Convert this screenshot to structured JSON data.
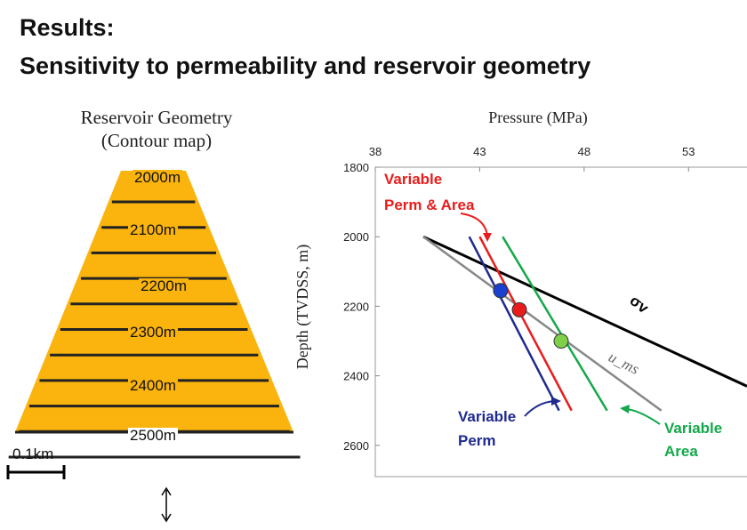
{
  "slide": {
    "title_line1": "Results:",
    "title_line2": "Sensitivity to permeability and reservoir geometry"
  },
  "geometry": {
    "heading_line1": "Reservoir Geometry",
    "heading_line2": "(Contour map)",
    "fill_color": "#FBB40E",
    "contours": [
      "2000m",
      "2100m",
      "2200m",
      "2300m",
      "2400m",
      "2500m"
    ],
    "scale_label": "0.1km"
  },
  "chart_data": {
    "type": "line",
    "xlabel": "Pressure (MPa)",
    "ylabel": "Depth (TVDSS, m)",
    "x_ticks": [
      38,
      43,
      48,
      53
    ],
    "y_ticks": [
      1800,
      2000,
      2200,
      2400,
      2600
    ],
    "xlim": [
      38,
      55.8
    ],
    "ylim": [
      1800,
      2690
    ],
    "y_inverted": true,
    "x_axis_position": "top",
    "grid": false,
    "series": [
      {
        "name": "σv",
        "color": "#000000",
        "x": [
          40.3,
          55.8
        ],
        "y": [
          2000,
          2430
        ]
      },
      {
        "name": "u_ms",
        "color": "#888888",
        "x": [
          40.3,
          51.7
        ],
        "y": [
          2000,
          2500
        ]
      },
      {
        "name": "Variable Perm",
        "color": "#1F2A8F",
        "x": [
          42.5,
          46.8
        ],
        "y": [
          2000,
          2500
        ]
      },
      {
        "name": "Variable Perm & Area",
        "color": "#E81C1C",
        "x": [
          43.0,
          47.4
        ],
        "y": [
          2000,
          2500
        ]
      },
      {
        "name": "Variable Area",
        "color": "#14A84A",
        "x": [
          44.1,
          49.1
        ],
        "y": [
          2000,
          2500
        ]
      }
    ],
    "points": [
      {
        "series": "Variable Perm",
        "x": 44.0,
        "y": 2155,
        "color": "#1B3FCF"
      },
      {
        "series": "Variable Perm & Area",
        "x": 44.9,
        "y": 2210,
        "color": "#E81C1C"
      },
      {
        "series": "Variable Area",
        "x": 46.9,
        "y": 2300,
        "color": "#7FD048"
      }
    ],
    "annotations": {
      "sigma_v": "σv",
      "u_ms": "u_ms",
      "perm_area_line1": "Variable",
      "perm_area_line2": "Perm & Area",
      "perm_line1": "Variable",
      "perm_line2": "Perm",
      "area_line1": "Variable",
      "area_line2": "Area"
    }
  }
}
